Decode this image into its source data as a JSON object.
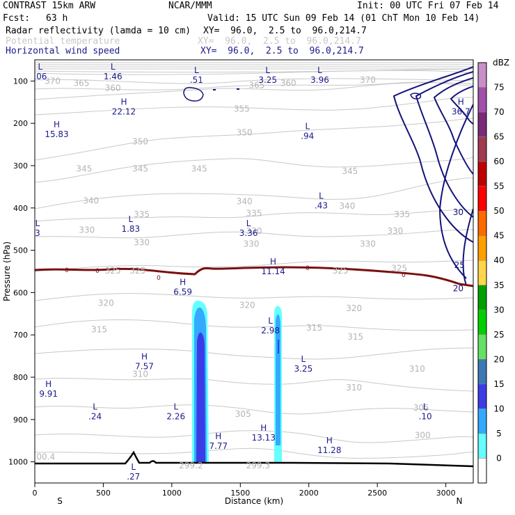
{
  "header": {
    "title": "CONTRAST 15km ARW",
    "center": "NCAR/MMM",
    "init": "Init: 00 UTC Fri 07 Feb 14",
    "fcst_label": "Fcst:",
    "fcst_value": "63 h",
    "valid": "Valid: 15 UTC Sun 09 Feb 14 (01 ChT Mon 10 Feb 14)",
    "field1": "Radar reflectivity (lamda = 10 cm)",
    "field1_xy": "XY=  96.0,  2.5 to  96.0,214.7",
    "field2": "Potential temperature",
    "field2_xy": "XY=  96.0,  2.5 to  96.0,214.7",
    "field3": "Horizontal wind speed",
    "field3_xy": "XY=  96.0,  2.5 to  96.0,214.7"
  },
  "chart_data": {
    "type": "cross-section",
    "xlabel": "Distance (km)",
    "ylabel": "Pressure (hPa)",
    "xlim": [
      0,
      3200
    ],
    "ylim": [
      1050,
      50
    ],
    "x_ticks": [
      "0",
      "500",
      "1000",
      "1500",
      "2000",
      "2500",
      "3000"
    ],
    "x_tick_values": [
      0,
      500,
      1000,
      1500,
      2000,
      2500,
      3000
    ],
    "y_ticks": [
      "100",
      "200",
      "300",
      "400",
      "500",
      "600",
      "700",
      "800",
      "900",
      "1000"
    ],
    "y_tick_values": [
      100,
      200,
      300,
      400,
      500,
      600,
      700,
      800,
      900,
      1000
    ],
    "endpoints": {
      "left": "S",
      "right": "N"
    },
    "colorbar": {
      "unit": "dBZ",
      "levels": [
        "75",
        "70",
        "65",
        "60",
        "55",
        "50",
        "45",
        "40",
        "35",
        "30",
        "25",
        "20",
        "15",
        "10",
        "5",
        "0"
      ],
      "colors": [
        "#c88fc8",
        "#a050a8",
        "#7a2a7a",
        "#a03a50",
        "#c00000",
        "#ff0000",
        "#ff6a00",
        "#ffa000",
        "#ffd54a",
        "#00a000",
        "#00d000",
        "#66e066",
        "#3c78b4",
        "#3c3ce6",
        "#33aaff",
        "#66ffff",
        "#ffffff"
      ]
    },
    "theta_labels": [
      {
        "text": "370",
        "x": 130,
        "p": 100
      },
      {
        "text": "365",
        "x": 340,
        "p": 105
      },
      {
        "text": "360",
        "x": 570,
        "p": 117
      },
      {
        "text": "365",
        "x": 1620,
        "p": 110
      },
      {
        "text": "360",
        "x": 1850,
        "p": 105
      },
      {
        "text": "370",
        "x": 2430,
        "p": 98
      },
      {
        "text": "355",
        "x": 1510,
        "p": 166
      },
      {
        "text": "350",
        "x": 1530,
        "p": 222
      },
      {
        "text": "350",
        "x": 770,
        "p": 243
      },
      {
        "text": "345",
        "x": 360,
        "p": 307
      },
      {
        "text": "345",
        "x": 770,
        "p": 307
      },
      {
        "text": "345",
        "x": 1200,
        "p": 307
      },
      {
        "text": "345",
        "x": 2300,
        "p": 313
      },
      {
        "text": "340",
        "x": 410,
        "p": 383
      },
      {
        "text": "340",
        "x": 1530,
        "p": 385
      },
      {
        "text": "340",
        "x": 2280,
        "p": 395
      },
      {
        "text": "335",
        "x": 780,
        "p": 415
      },
      {
        "text": "335",
        "x": 1600,
        "p": 413
      },
      {
        "text": "335",
        "x": 2680,
        "p": 415
      },
      {
        "text": "330",
        "x": 380,
        "p": 452
      },
      {
        "text": "330",
        "x": 780,
        "p": 482
      },
      {
        "text": "330",
        "x": 1600,
        "p": 455
      },
      {
        "text": "330",
        "x": 2630,
        "p": 455
      },
      {
        "text": "330",
        "x": 1580,
        "p": 485
      },
      {
        "text": "330",
        "x": 2430,
        "p": 485
      },
      {
        "text": "325",
        "x": 570,
        "p": 548
      },
      {
        "text": "325",
        "x": 750,
        "p": 548
      },
      {
        "text": "325",
        "x": 2230,
        "p": 548
      },
      {
        "text": "325",
        "x": 2660,
        "p": 543
      },
      {
        "text": "320",
        "x": 520,
        "p": 625
      },
      {
        "text": "320",
        "x": 1550,
        "p": 630
      },
      {
        "text": "320",
        "x": 2330,
        "p": 637
      },
      {
        "text": "315",
        "x": 470,
        "p": 687
      },
      {
        "text": "315",
        "x": 2040,
        "p": 683
      },
      {
        "text": "315",
        "x": 2340,
        "p": 705
      },
      {
        "text": "310",
        "x": 770,
        "p": 793
      },
      {
        "text": "310",
        "x": 2790,
        "p": 780
      },
      {
        "text": "310",
        "x": 2330,
        "p": 825
      },
      {
        "text": "305",
        "x": 1520,
        "p": 887
      },
      {
        "text": "305",
        "x": 2820,
        "p": 872
      },
      {
        "text": "300",
        "x": 2830,
        "p": 937
      },
      {
        "text": "00.4",
        "x": 80,
        "p": 988
      },
      {
        "text": "299.2",
        "x": 1140,
        "p": 1009
      },
      {
        "text": "299.3",
        "x": 1630,
        "p": 1009
      }
    ],
    "wind_labels": [
      {
        "text": "30",
        "x": 3090,
        "p": 410
      },
      {
        "text": "25",
        "x": 3100,
        "p": 535
      },
      {
        "text": "20",
        "x": 3090,
        "p": 590
      }
    ],
    "extrema": [
      {
        "type": "L",
        "value": ".06",
        "x": 40,
        "p": 80
      },
      {
        "type": "L",
        "value": "1.46",
        "x": 570,
        "p": 80
      },
      {
        "type": "L",
        "value": ".51",
        "x": 1180,
        "p": 88
      },
      {
        "type": "L",
        "value": "3.25",
        "x": 1700,
        "p": 88
      },
      {
        "type": "L",
        "value": "3.96",
        "x": 2080,
        "p": 88
      },
      {
        "type": "H",
        "value": "22.12",
        "x": 650,
        "p": 163
      },
      {
        "type": "H",
        "value": "36.7",
        "x": 3110,
        "p": 163
      },
      {
        "type": "H",
        "value": "15.83",
        "x": 160,
        "p": 216
      },
      {
        "type": "L",
        "value": ".94",
        "x": 1990,
        "p": 220
      },
      {
        "type": "L",
        "value": ".43",
        "x": 2090,
        "p": 385
      },
      {
        "type": "L",
        "value": "1.83",
        "x": 700,
        "p": 440
      },
      {
        "type": "L",
        "value": "3.36",
        "x": 1560,
        "p": 450
      },
      {
        "type": "L",
        "value": "3",
        "x": 20,
        "p": 450
      },
      {
        "type": "H",
        "value": "11.14",
        "x": 1740,
        "p": 540
      },
      {
        "type": "H",
        "value": "6.59",
        "x": 1080,
        "p": 589
      },
      {
        "type": "L",
        "value": "2.98",
        "x": 1720,
        "p": 680
      },
      {
        "type": "H",
        "value": "7.57",
        "x": 800,
        "p": 765
      },
      {
        "type": "L",
        "value": "3.25",
        "x": 1960,
        "p": 770
      },
      {
        "type": "H",
        "value": "9.91",
        "x": 100,
        "p": 830
      },
      {
        "type": "L",
        "value": ".24",
        "x": 440,
        "p": 883
      },
      {
        "type": "L",
        "value": "2.26",
        "x": 1030,
        "p": 883
      },
      {
        "type": "L",
        "value": ".10",
        "x": 2850,
        "p": 883
      },
      {
        "type": "H",
        "value": "13.13",
        "x": 1670,
        "p": 933
      },
      {
        "type": "H",
        "value": "7.77",
        "x": 1340,
        "p": 953
      },
      {
        "type": "H",
        "value": "11.28",
        "x": 2150,
        "p": 963
      },
      {
        "type": "L",
        "value": ".27",
        "x": 720,
        "p": 1025
      }
    ],
    "freezing_level_label": "0"
  }
}
